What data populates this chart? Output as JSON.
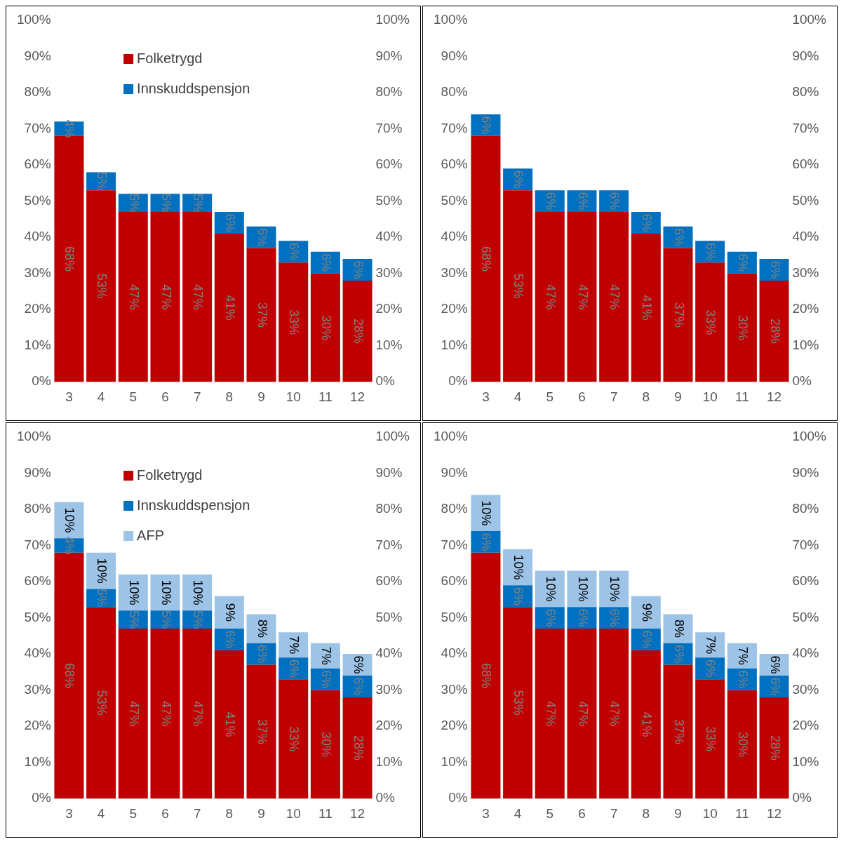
{
  "chart_data": [
    {
      "type": "bar",
      "stacked": true,
      "legend": "top left",
      "categories": [
        "3",
        "4",
        "5",
        "6",
        "7",
        "8",
        "9",
        "10",
        "11",
        "12"
      ],
      "ylim": [
        0,
        100
      ],
      "yticks": [
        {
          "value": 0,
          "label": "0%"
        },
        {
          "value": 10,
          "label": "10%"
        },
        {
          "value": 20,
          "label": "20%"
        },
        {
          "value": 30,
          "label": "30%"
        },
        {
          "value": 40,
          "label": "40%"
        },
        {
          "value": 50,
          "label": "50%"
        },
        {
          "value": 60,
          "label": "60%"
        },
        {
          "value": 70,
          "label": "70%"
        },
        {
          "value": 80,
          "label": "80%"
        },
        {
          "value": 90,
          "label": "90%"
        },
        {
          "value": 100,
          "label": "100%"
        }
      ],
      "y2lim": [
        0,
        100
      ],
      "y2ticks": [
        {
          "value": 0,
          "label": "0%"
        },
        {
          "value": 10,
          "label": "10%"
        },
        {
          "value": 20,
          "label": "20%"
        },
        {
          "value": 30,
          "label": "30%"
        },
        {
          "value": 40,
          "label": "40%"
        },
        {
          "value": 50,
          "label": "50%"
        },
        {
          "value": 60,
          "label": "60%"
        },
        {
          "value": 70,
          "label": "70%"
        },
        {
          "value": 80,
          "label": "80%"
        },
        {
          "value": 90,
          "label": "90%"
        },
        {
          "value": 100,
          "label": "100%"
        }
      ],
      "series": [
        {
          "name": "Folketrygd",
          "color": "#c00000",
          "values": [
            68,
            53,
            47,
            47,
            47,
            41,
            37,
            33,
            30,
            28
          ],
          "value_labels": [
            "68%",
            "53%",
            "47%",
            "47%",
            "47%",
            "41%",
            "37%",
            "33%",
            "30%",
            "28%"
          ]
        },
        {
          "name": "Innskuddspensjon",
          "color": "#0070c0",
          "values": [
            4,
            5,
            5,
            5,
            5,
            6,
            6,
            6,
            6,
            6
          ],
          "value_labels": [
            "4%",
            "5%",
            "5%",
            "5%",
            "5%",
            "6%",
            "6%",
            "6%",
            "6%",
            "6%"
          ]
        }
      ]
    },
    {
      "type": "bar",
      "stacked": true,
      "categories": [
        "3",
        "4",
        "5",
        "6",
        "7",
        "8",
        "9",
        "10",
        "11",
        "12"
      ],
      "ylim": [
        0,
        100
      ],
      "yticks": [
        {
          "value": 0,
          "label": "0%"
        },
        {
          "value": 10,
          "label": "10%"
        },
        {
          "value": 20,
          "label": "20%"
        },
        {
          "value": 30,
          "label": "30%"
        },
        {
          "value": 40,
          "label": "40%"
        },
        {
          "value": 50,
          "label": "50%"
        },
        {
          "value": 60,
          "label": "60%"
        },
        {
          "value": 70,
          "label": "70%"
        },
        {
          "value": 80,
          "label": "80%"
        },
        {
          "value": 90,
          "label": "90%"
        },
        {
          "value": 100,
          "label": "100%"
        }
      ],
      "y2lim": [
        0,
        100
      ],
      "y2ticks": [
        {
          "value": 0,
          "label": "0%"
        },
        {
          "value": 10,
          "label": "10%"
        },
        {
          "value": 20,
          "label": "20%"
        },
        {
          "value": 30,
          "label": "30%"
        },
        {
          "value": 40,
          "label": "40%"
        },
        {
          "value": 50,
          "label": "50%"
        },
        {
          "value": 60,
          "label": "60%"
        },
        {
          "value": 70,
          "label": "70%"
        },
        {
          "value": 80,
          "label": "80%"
        },
        {
          "value": 90,
          "label": "90%"
        },
        {
          "value": 100,
          "label": "100%"
        }
      ],
      "series": [
        {
          "color": "#c00000",
          "values": [
            68,
            53,
            47,
            47,
            47,
            41,
            37,
            33,
            30,
            28
          ],
          "value_labels": [
            "68%",
            "53%",
            "47%",
            "47%",
            "47%",
            "41%",
            "37%",
            "33%",
            "30%",
            "28%"
          ]
        },
        {
          "color": "#0070c0",
          "values": [
            6,
            6,
            6,
            6,
            6,
            6,
            6,
            6,
            6,
            6
          ],
          "value_labels": [
            "6%",
            "6%",
            "6%",
            "6%",
            "6%",
            "6%",
            "6%",
            "6%",
            "6%",
            "6%"
          ]
        }
      ]
    },
    {
      "type": "bar",
      "stacked": true,
      "legend": "top left",
      "categories": [
        "3",
        "4",
        "5",
        "6",
        "7",
        "8",
        "9",
        "10",
        "11",
        "12"
      ],
      "ylim": [
        0,
        100
      ],
      "yticks": [
        {
          "value": 0,
          "label": "0%"
        },
        {
          "value": 10,
          "label": "10%"
        },
        {
          "value": 20,
          "label": "20%"
        },
        {
          "value": 30,
          "label": "30%"
        },
        {
          "value": 40,
          "label": "40%"
        },
        {
          "value": 50,
          "label": "50%"
        },
        {
          "value": 60,
          "label": "60%"
        },
        {
          "value": 70,
          "label": "70%"
        },
        {
          "value": 80,
          "label": "80%"
        },
        {
          "value": 90,
          "label": "90%"
        },
        {
          "value": 100,
          "label": "100%"
        }
      ],
      "y2lim": [
        0,
        100
      ],
      "y2ticks": [
        {
          "value": 0,
          "label": "0%"
        },
        {
          "value": 10,
          "label": "10%"
        },
        {
          "value": 20,
          "label": "20%"
        },
        {
          "value": 30,
          "label": "30%"
        },
        {
          "value": 40,
          "label": "40%"
        },
        {
          "value": 50,
          "label": "50%"
        },
        {
          "value": 60,
          "label": "60%"
        },
        {
          "value": 70,
          "label": "70%"
        },
        {
          "value": 80,
          "label": "80%"
        },
        {
          "value": 90,
          "label": "90%"
        },
        {
          "value": 100,
          "label": "100%"
        }
      ],
      "series": [
        {
          "name": "Folketrygd",
          "color": "#c00000",
          "values": [
            68,
            53,
            47,
            47,
            47,
            41,
            37,
            33,
            30,
            28
          ],
          "value_labels": [
            "68%",
            "53%",
            "47%",
            "47%",
            "47%",
            "41%",
            "37%",
            "33%",
            "30%",
            "28%"
          ]
        },
        {
          "name": "Innskuddspensjon",
          "color": "#0070c0",
          "values": [
            4,
            5,
            5,
            5,
            5,
            6,
            6,
            6,
            6,
            6
          ],
          "value_labels": [
            "4%",
            "5%",
            "5%",
            "5%",
            "5%",
            "6%",
            "6%",
            "6%",
            "6%",
            "6%"
          ]
        },
        {
          "name": "AFP",
          "color": "#9dc3e6",
          "values": [
            10,
            10,
            10,
            10,
            10,
            9,
            8,
            7,
            7,
            6
          ],
          "value_labels": [
            "10%",
            "10%",
            "10%",
            "10%",
            "10%",
            "9%",
            "8%",
            "7%",
            "7%",
            "6%"
          ]
        }
      ]
    },
    {
      "type": "bar",
      "stacked": true,
      "categories": [
        "3",
        "4",
        "5",
        "6",
        "7",
        "8",
        "9",
        "10",
        "11",
        "12"
      ],
      "ylim": [
        0,
        100
      ],
      "yticks": [
        {
          "value": 0,
          "label": "0%"
        },
        {
          "value": 10,
          "label": "10%"
        },
        {
          "value": 20,
          "label": "20%"
        },
        {
          "value": 30,
          "label": "30%"
        },
        {
          "value": 40,
          "label": "40%"
        },
        {
          "value": 50,
          "label": "50%"
        },
        {
          "value": 60,
          "label": "60%"
        },
        {
          "value": 70,
          "label": "70%"
        },
        {
          "value": 80,
          "label": "80%"
        },
        {
          "value": 90,
          "label": "90%"
        },
        {
          "value": 100,
          "label": "100%"
        }
      ],
      "y2lim": [
        0,
        100
      ],
      "y2ticks": [
        {
          "value": 0,
          "label": "0%"
        },
        {
          "value": 10,
          "label": "10%"
        },
        {
          "value": 20,
          "label": "20%"
        },
        {
          "value": 30,
          "label": "30%"
        },
        {
          "value": 40,
          "label": "40%"
        },
        {
          "value": 50,
          "label": "50%"
        },
        {
          "value": 60,
          "label": "60%"
        },
        {
          "value": 70,
          "label": "70%"
        },
        {
          "value": 80,
          "label": "80%"
        },
        {
          "value": 90,
          "label": "90%"
        },
        {
          "value": 100,
          "label": "100%"
        }
      ],
      "series": [
        {
          "color": "#c00000",
          "values": [
            68,
            53,
            47,
            47,
            47,
            41,
            37,
            33,
            30,
            28
          ],
          "value_labels": [
            "68%",
            "53%",
            "47%",
            "47%",
            "47%",
            "41%",
            "37%",
            "33%",
            "30%",
            "28%"
          ]
        },
        {
          "color": "#0070c0",
          "values": [
            6,
            6,
            6,
            6,
            6,
            6,
            6,
            6,
            6,
            6
          ],
          "value_labels": [
            "6%",
            "6%",
            "6%",
            "6%",
            "6%",
            "6%",
            "6%",
            "6%",
            "6%",
            "6%"
          ]
        },
        {
          "color": "#9dc3e6",
          "values": [
            10,
            10,
            10,
            10,
            10,
            9,
            8,
            7,
            7,
            6
          ],
          "value_labels": [
            "10%",
            "10%",
            "10%",
            "10%",
            "10%",
            "9%",
            "8%",
            "7%",
            "7%",
            "6%"
          ]
        }
      ]
    }
  ]
}
